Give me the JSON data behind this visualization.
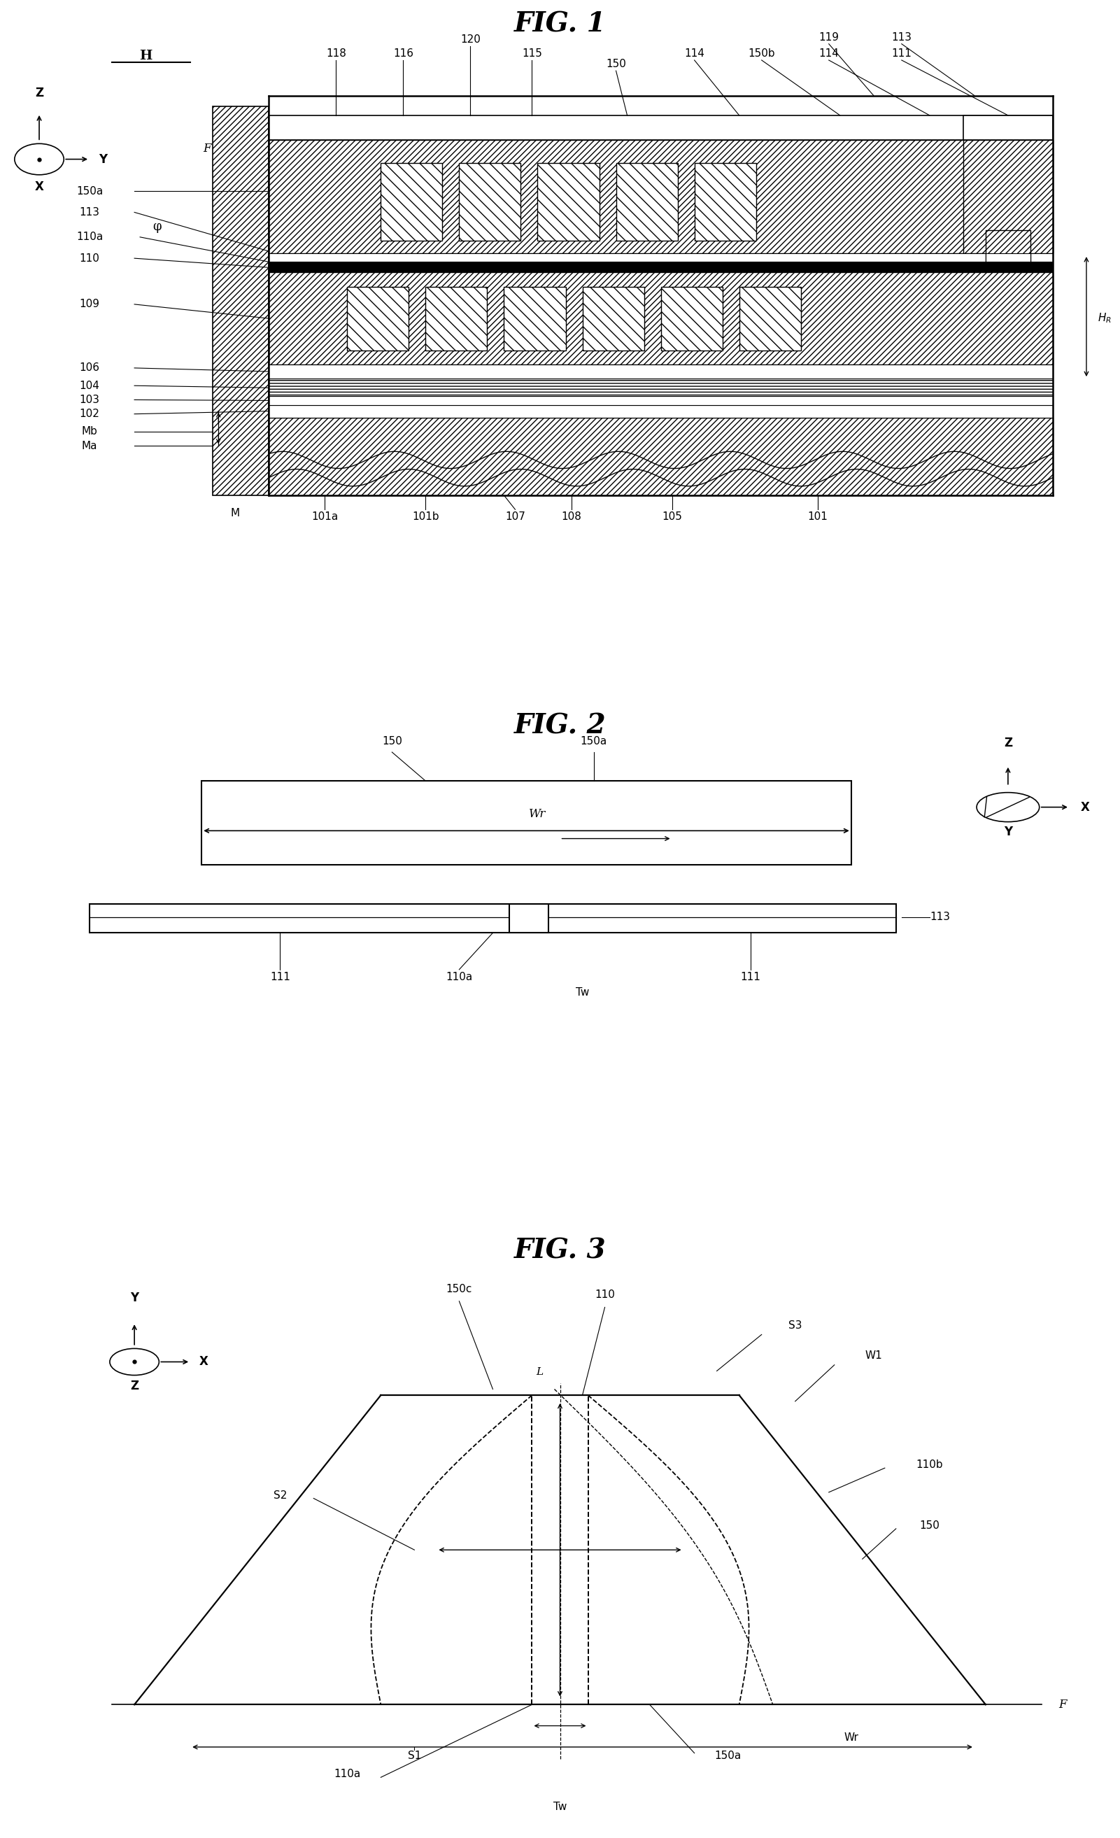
{
  "fig_title1": "FIG. 1",
  "fig_title2": "FIG. 2",
  "fig_title3": "FIG. 3",
  "bg_color": "#ffffff",
  "line_color": "#000000",
  "font_size_title": 28,
  "font_size_label": 11
}
